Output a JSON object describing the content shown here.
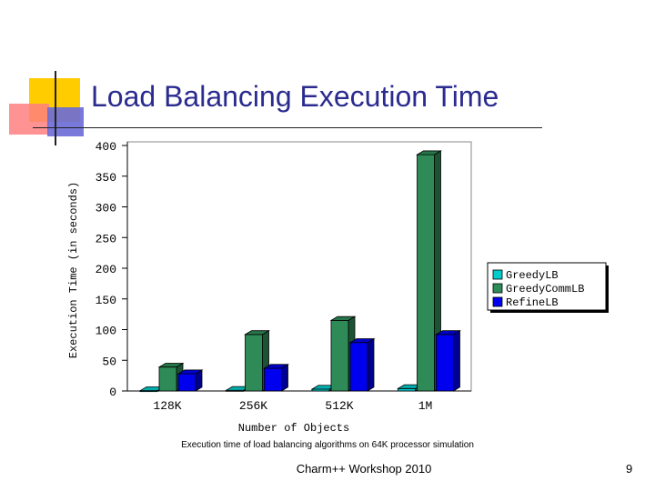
{
  "slide": {
    "title": "Load Balancing Execution Time",
    "caption": "Execution time of load balancing algorithms on 64K processor simulation",
    "footer": "Charm++ Workshop 2010",
    "page_number": "9"
  },
  "chart_data": {
    "type": "bar",
    "title": "",
    "xlabel": "Number of Objects",
    "ylabel": "Execution Time (in seconds)",
    "categories": [
      "128K",
      "256K",
      "512K",
      "1M"
    ],
    "ylim": [
      0,
      400
    ],
    "yticks": [
      0,
      50,
      100,
      150,
      200,
      250,
      300,
      350,
      400
    ],
    "grid": false,
    "legend": "right",
    "series": [
      {
        "name": "GreedyLB",
        "color": "#00cccc",
        "values": [
          0.5,
          1,
          3,
          4
        ]
      },
      {
        "name": "GreedyCommLB",
        "color": "#2e8b57",
        "values": [
          39,
          92,
          115,
          385
        ]
      },
      {
        "name": "RefineLB",
        "color": "#0000ee",
        "values": [
          28,
          37,
          79,
          92
        ]
      }
    ]
  }
}
